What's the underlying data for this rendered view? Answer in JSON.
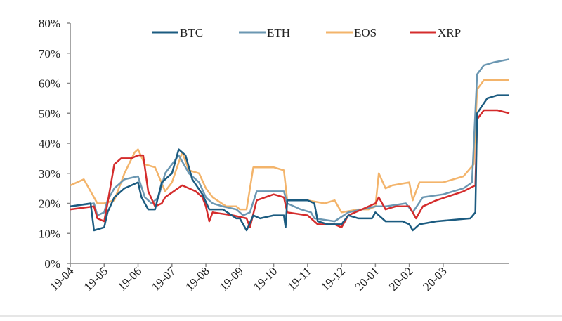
{
  "chart_data": {
    "type": "line",
    "title": "",
    "xlabel": "",
    "ylabel": "",
    "x_tick_labels": [
      "19-04",
      "19-05",
      "19-06",
      "19-07",
      "19-08",
      "19-09",
      "19-10",
      "19-11",
      "19-12",
      "20-01",
      "20-02",
      "20-03"
    ],
    "x_range_months": [
      0,
      12.95
    ],
    "y_tick_labels": [
      "0%",
      "10%",
      "20%",
      "30%",
      "40%",
      "50%",
      "60%",
      "70%",
      "80%"
    ],
    "ylim": [
      0,
      80
    ],
    "grid": false,
    "legend_position": "top",
    "series": [
      {
        "name": "BTC",
        "color": "#1b5b80",
        "points": [
          [
            0,
            19
          ],
          [
            0.6,
            20
          ],
          [
            0.7,
            11
          ],
          [
            1,
            12
          ],
          [
            1.1,
            17
          ],
          [
            1.3,
            22
          ],
          [
            1.6,
            25
          ],
          [
            2,
            27
          ],
          [
            2.1,
            22
          ],
          [
            2.3,
            18
          ],
          [
            2.5,
            18
          ],
          [
            2.7,
            27
          ],
          [
            3,
            30
          ],
          [
            3.2,
            38
          ],
          [
            3.4,
            36
          ],
          [
            3.6,
            28
          ],
          [
            3.9,
            23
          ],
          [
            4.1,
            18
          ],
          [
            4.5,
            18
          ],
          [
            4.9,
            15
          ],
          [
            5,
            15
          ],
          [
            5.2,
            11
          ],
          [
            5.4,
            16
          ],
          [
            5.6,
            15
          ],
          [
            6,
            16
          ],
          [
            6.3,
            16
          ],
          [
            6.35,
            12
          ],
          [
            6.4,
            21
          ],
          [
            7,
            21
          ],
          [
            7.2,
            20
          ],
          [
            7.3,
            14
          ],
          [
            7.6,
            13
          ],
          [
            8,
            13
          ],
          [
            8.2,
            16
          ],
          [
            8.5,
            15
          ],
          [
            8.9,
            15
          ],
          [
            9,
            17
          ],
          [
            9.3,
            14
          ],
          [
            9.8,
            14
          ],
          [
            10,
            13
          ],
          [
            10.1,
            11
          ],
          [
            10.3,
            13
          ],
          [
            10.8,
            14
          ],
          [
            11.8,
            15
          ],
          [
            11.95,
            17
          ],
          [
            12,
            50
          ],
          [
            12.3,
            55
          ],
          [
            12.6,
            56
          ],
          [
            12.95,
            56
          ]
        ]
      },
      {
        "name": "ETH",
        "color": "#6b97b2",
        "points": [
          [
            0,
            19
          ],
          [
            0.7,
            20
          ],
          [
            0.8,
            16
          ],
          [
            1,
            17
          ],
          [
            1.1,
            21
          ],
          [
            1.3,
            25
          ],
          [
            1.6,
            28
          ],
          [
            2,
            29
          ],
          [
            2.2,
            22
          ],
          [
            2.4,
            20
          ],
          [
            2.6,
            22
          ],
          [
            2.8,
            30
          ],
          [
            3,
            33
          ],
          [
            3.2,
            36
          ],
          [
            3.5,
            30
          ],
          [
            3.8,
            27
          ],
          [
            4,
            22
          ],
          [
            4.2,
            20
          ],
          [
            4.5,
            19
          ],
          [
            4.9,
            18
          ],
          [
            5,
            17
          ],
          [
            5.1,
            16
          ],
          [
            5.3,
            17
          ],
          [
            5.5,
            24
          ],
          [
            6,
            24
          ],
          [
            6.3,
            24
          ],
          [
            6.4,
            20
          ],
          [
            6.8,
            18
          ],
          [
            7.1,
            17
          ],
          [
            7.2,
            15
          ],
          [
            7.8,
            14
          ],
          [
            8.2,
            17
          ],
          [
            8.6,
            18
          ],
          [
            9,
            19
          ],
          [
            9.3,
            19
          ],
          [
            9.9,
            20
          ],
          [
            10.1,
            17
          ],
          [
            10.4,
            22
          ],
          [
            11,
            23
          ],
          [
            11.6,
            25
          ],
          [
            11.85,
            27
          ],
          [
            12,
            63
          ],
          [
            12.2,
            66
          ],
          [
            12.5,
            67
          ],
          [
            12.95,
            68
          ]
        ]
      },
      {
        "name": "EOS",
        "color": "#f3b46b",
        "points": [
          [
            0,
            26
          ],
          [
            0.4,
            28
          ],
          [
            0.6,
            24
          ],
          [
            0.8,
            20
          ],
          [
            1,
            20
          ],
          [
            1.3,
            21
          ],
          [
            1.6,
            30
          ],
          [
            1.9,
            37
          ],
          [
            2,
            38
          ],
          [
            2.2,
            33
          ],
          [
            2.5,
            32
          ],
          [
            2.8,
            24
          ],
          [
            3,
            27
          ],
          [
            3.3,
            37
          ],
          [
            3.5,
            31
          ],
          [
            3.8,
            30
          ],
          [
            4,
            25
          ],
          [
            4.2,
            22
          ],
          [
            4.6,
            19
          ],
          [
            4.9,
            19
          ],
          [
            5,
            18
          ],
          [
            5.2,
            18
          ],
          [
            5.4,
            32
          ],
          [
            6,
            32
          ],
          [
            6.3,
            31
          ],
          [
            6.4,
            21
          ],
          [
            7,
            21
          ],
          [
            7.5,
            20
          ],
          [
            7.8,
            21
          ],
          [
            8,
            17
          ],
          [
            8.5,
            18
          ],
          [
            8.8,
            18
          ],
          [
            9,
            19
          ],
          [
            9.1,
            30
          ],
          [
            9.3,
            25
          ],
          [
            9.5,
            26
          ],
          [
            10,
            27
          ],
          [
            10.1,
            21
          ],
          [
            10.3,
            27
          ],
          [
            11,
            27
          ],
          [
            11.6,
            29
          ],
          [
            11.9,
            33
          ],
          [
            12,
            58
          ],
          [
            12.2,
            61
          ],
          [
            12.6,
            61
          ],
          [
            12.95,
            61
          ]
        ]
      },
      {
        "name": "XRP",
        "color": "#d42c2c",
        "points": [
          [
            0,
            18
          ],
          [
            0.7,
            19
          ],
          [
            0.8,
            15
          ],
          [
            1,
            14
          ],
          [
            1.1,
            20
          ],
          [
            1.3,
            33
          ],
          [
            1.5,
            35
          ],
          [
            1.8,
            35
          ],
          [
            2,
            36
          ],
          [
            2.15,
            36
          ],
          [
            2.3,
            24
          ],
          [
            2.5,
            19
          ],
          [
            2.7,
            20
          ],
          [
            2.8,
            22
          ],
          [
            3.3,
            26
          ],
          [
            3.7,
            24
          ],
          [
            3.9,
            22
          ],
          [
            4,
            19
          ],
          [
            4.1,
            14
          ],
          [
            4.2,
            17
          ],
          [
            4.8,
            16
          ],
          [
            5.2,
            15
          ],
          [
            5.3,
            12
          ],
          [
            5.5,
            21
          ],
          [
            6,
            23
          ],
          [
            6.3,
            22
          ],
          [
            6.4,
            17
          ],
          [
            7,
            16
          ],
          [
            7.3,
            13
          ],
          [
            7.8,
            13
          ],
          [
            8,
            12
          ],
          [
            8.2,
            16
          ],
          [
            8.6,
            18
          ],
          [
            9,
            20
          ],
          [
            9.1,
            22
          ],
          [
            9.3,
            18
          ],
          [
            9.6,
            19
          ],
          [
            10,
            19
          ],
          [
            10.2,
            15
          ],
          [
            10.4,
            19
          ],
          [
            10.8,
            21
          ],
          [
            11.6,
            24
          ],
          [
            11.95,
            26
          ],
          [
            12,
            48
          ],
          [
            12.2,
            51
          ],
          [
            12.6,
            51
          ],
          [
            12.95,
            50
          ]
        ]
      }
    ]
  }
}
